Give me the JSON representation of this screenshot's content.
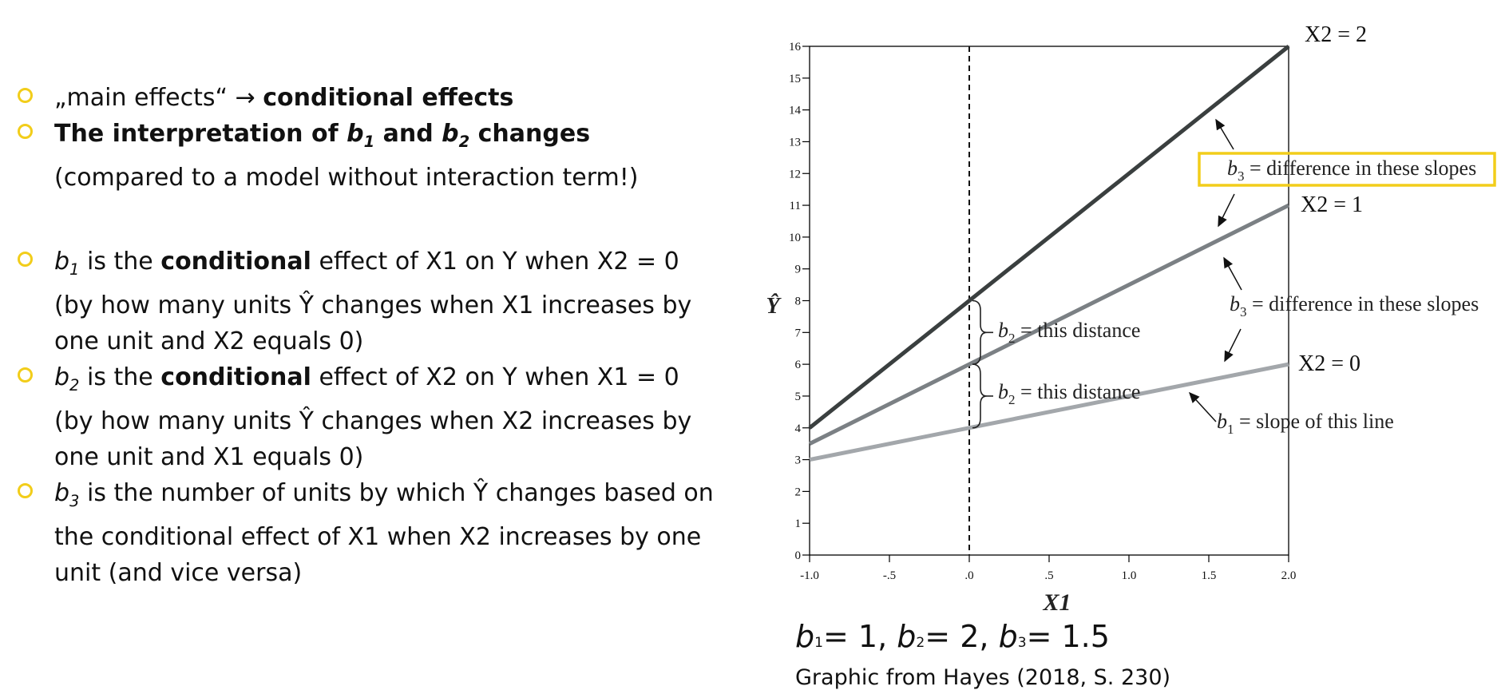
{
  "bullets": [
    {
      "parts": [
        {
          "t": "„main effects“ → "
        },
        {
          "t": "conditional effects",
          "b": true
        }
      ]
    },
    {
      "parts": [
        {
          "t": "The interpretation of ",
          "b": true
        },
        {
          "t": "b",
          "b": true,
          "i": true
        },
        {
          "t": "1",
          "b": true,
          "i": true,
          "sub": true
        },
        {
          "t": " and ",
          "b": true
        },
        {
          "t": "b",
          "b": true,
          "i": true
        },
        {
          "t": "2",
          "b": true,
          "i": true,
          "sub": true
        },
        {
          "t": " changes",
          "b": true
        },
        {
          "t": " (compared to a model without interaction term!)"
        }
      ]
    },
    {
      "gap": true
    },
    {
      "parts": [
        {
          "t": "b",
          "i": true
        },
        {
          "t": "1",
          "i": true,
          "sub": true
        },
        {
          "t": " is the "
        },
        {
          "t": "conditional",
          "b": true
        },
        {
          "t": " effect of X1 on Y when X2 = 0 (by how many units Ŷ changes when X1 increases by one unit and X2 equals 0)"
        }
      ]
    },
    {
      "parts": [
        {
          "t": "b",
          "i": true
        },
        {
          "t": "2",
          "i": true,
          "sub": true
        },
        {
          "t": " is the "
        },
        {
          "t": "conditional",
          "b": true
        },
        {
          "t": " effect of X2 on Y when X1 = 0 (by how many units Ŷ changes when X2 increases by one unit and X1 equals 0)"
        }
      ]
    },
    {
      "parts": [
        {
          "t": "b",
          "i": true
        },
        {
          "t": "3",
          "i": true,
          "sub": true
        },
        {
          "t": " is the number of units by which Ŷ changes based on the conditional effect of X1 when X2 increases by one unit (and vice versa)"
        }
      ]
    }
  ],
  "chart_data": {
    "type": "line",
    "xlabel": "X1",
    "ylabel": "Ŷ",
    "xlim": [
      -1.0,
      2.0
    ],
    "ylim": [
      0,
      16
    ],
    "x_ticks": [
      -1.0,
      -0.5,
      0.0,
      0.5,
      1.0,
      1.5,
      2.0
    ],
    "x_tick_labels": [
      "-1.0",
      "-.5",
      ".0",
      ".5",
      "1.0",
      "1.5",
      "2.0"
    ],
    "y_ticks": [
      0,
      1,
      2,
      3,
      4,
      5,
      6,
      7,
      8,
      9,
      10,
      11,
      12,
      13,
      14,
      15,
      16
    ],
    "vline_x": 0.0,
    "series": [
      {
        "name": "X2 = 2",
        "x": [
          -1.0,
          2.0
        ],
        "y": [
          4,
          16
        ],
        "color": "#3a3f3f"
      },
      {
        "name": "X2 = 1",
        "x": [
          -1.0,
          2.0
        ],
        "y": [
          3.5,
          11
        ],
        "color": "#7b8084"
      },
      {
        "name": "X2 = 0",
        "x": [
          -1.0,
          2.0
        ],
        "y": [
          3,
          6
        ],
        "color": "#a3a7ab"
      }
    ],
    "annotations": [
      {
        "b": "b",
        "sub": "3",
        "rest": " = difference in these slopes",
        "highlighted": true
      },
      {
        "b": "b",
        "sub": "3",
        "rest": " = difference in these slopes"
      },
      {
        "b": "b",
        "sub": "2",
        "rest": " = this distance"
      },
      {
        "b": "b",
        "sub": "2",
        "rest": " = this distance"
      },
      {
        "b": "b",
        "sub": "1",
        "rest": " = slope of this line"
      }
    ],
    "highlight_color": "#F2CD1A"
  },
  "caption": {
    "formula_parts": [
      {
        "t": "b",
        "i": true
      },
      {
        "t": "1",
        "small": true
      },
      {
        "t": "= 1, "
      },
      {
        "t": "b",
        "i": true
      },
      {
        "t": "2",
        "small": true
      },
      {
        "t": "= 2, "
      },
      {
        "t": "b",
        "i": true
      },
      {
        "t": "3",
        "small": true
      },
      {
        "t": "= 1.5"
      }
    ],
    "source": "Graphic from Hayes (2018, S. 230)"
  }
}
